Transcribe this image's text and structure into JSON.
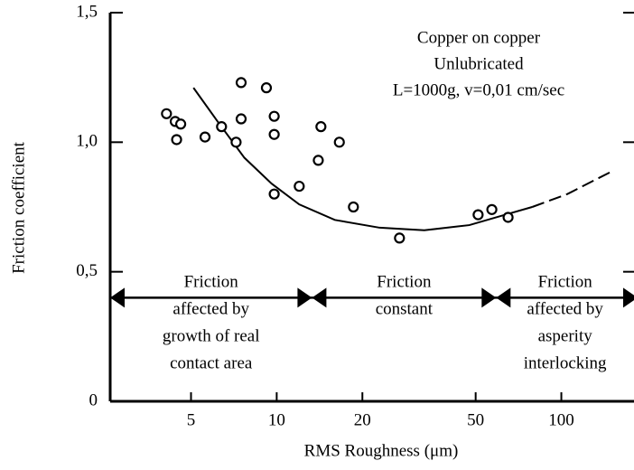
{
  "chart_data": {
    "type": "scatter",
    "xlabel": "RMS Roughness (μm)",
    "ylabel": "Friction coefficient",
    "annotation": [
      "Copper on copper",
      "Unlubricated",
      "L=1000g,  v=0,01 cm/sec"
    ],
    "xscale": "log",
    "xlim": [
      2.6,
      180
    ],
    "ylim": [
      0,
      1.5
    ],
    "xticks": [
      5,
      10,
      20,
      50,
      100
    ],
    "yticks": [
      0,
      {
        "value": 0.5,
        "label": "0,5"
      },
      {
        "value": 1.0,
        "label": "1,0"
      },
      {
        "value": 1.5,
        "label": "1,5"
      }
    ],
    "color": "#000000",
    "x": [
      4.1,
      4.4,
      4.6,
      4.45,
      5.6,
      6.4,
      7.2,
      7.5,
      7.5,
      9.2,
      9.8,
      9.8,
      9.8,
      12,
      14.3,
      14.0,
      16.6,
      18.6,
      27,
      51,
      57,
      65
    ],
    "values": [
      1.11,
      1.08,
      1.07,
      1.01,
      1.02,
      1.06,
      1.0,
      1.23,
      1.09,
      1.21,
      1.1,
      1.03,
      0.8,
      0.83,
      1.06,
      0.93,
      1.0,
      0.75,
      0.63,
      0.72,
      0.74,
      0.71
    ],
    "curve": {
      "x": [
        5.1,
        6.2,
        7.7,
        9.6,
        12,
        16,
        23,
        33,
        47.5,
        63.5,
        79
      ],
      "values": [
        1.21,
        1.08,
        0.94,
        0.84,
        0.76,
        0.7,
        0.67,
        0.66,
        0.68,
        0.72,
        0.75
      ]
    },
    "curve_extrapolated": {
      "x": [
        79,
        105,
        152
      ],
      "values": [
        0.75,
        0.8,
        0.89
      ]
    },
    "region_bounds": [
      13.3,
      59
    ],
    "region_y": 0.4,
    "regions": [
      [
        "Friction",
        "affected by",
        "growth of real",
        "contact area"
      ],
      [
        "Friction",
        "constant"
      ],
      [
        "Friction",
        "affected by",
        "asperity",
        "interlocking"
      ]
    ]
  }
}
